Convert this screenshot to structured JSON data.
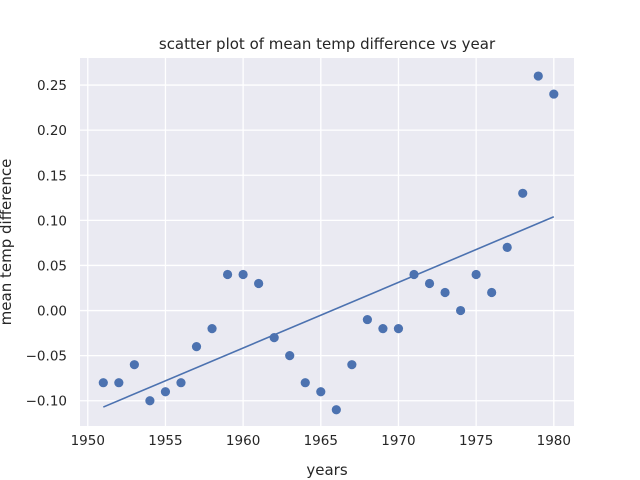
{
  "chart_data": {
    "type": "scatter",
    "title": "scatter plot of mean temp difference vs year",
    "xlabel": "years",
    "ylabel": "mean temp difference",
    "xlim": [
      1949.5,
      1981.3
    ],
    "ylim": [
      -0.128,
      0.28
    ],
    "xticks": [
      1950,
      1955,
      1960,
      1965,
      1970,
      1975,
      1980
    ],
    "xtick_labels": [
      "1950",
      "1955",
      "1960",
      "1965",
      "1970",
      "1975",
      "1980"
    ],
    "yticks": [
      -0.1,
      -0.05,
      0.0,
      0.05,
      0.1,
      0.15,
      0.2,
      0.25
    ],
    "ytick_labels": [
      "−0.10",
      "−0.05",
      "0.00",
      "0.05",
      "0.10",
      "0.15",
      "0.20",
      "0.25"
    ],
    "grid": true,
    "background_color": "#eaeaf2",
    "grid_color": "#ffffff",
    "series": [
      {
        "type": "scatter",
        "color": "#4c72b0",
        "x": [
          1951,
          1952,
          1953,
          1954,
          1955,
          1956,
          1957,
          1958,
          1959,
          1960,
          1961,
          1962,
          1963,
          1964,
          1965,
          1966,
          1967,
          1968,
          1969,
          1970,
          1971,
          1972,
          1973,
          1974,
          1975,
          1976,
          1977,
          1978,
          1979,
          1980
        ],
        "y": [
          -0.08,
          -0.08,
          -0.06,
          -0.1,
          -0.09,
          -0.08,
          -0.04,
          -0.02,
          0.04,
          0.04,
          0.03,
          -0.03,
          -0.05,
          -0.08,
          -0.09,
          -0.11,
          -0.06,
          -0.01,
          -0.02,
          -0.02,
          0.04,
          0.03,
          0.02,
          0.0,
          0.04,
          0.02,
          0.07,
          0.13,
          0.26,
          0.24
        ]
      },
      {
        "type": "line",
        "color": "#4c72b0",
        "x": [
          1951,
          1980
        ],
        "y": [
          -0.107,
          0.104
        ]
      }
    ]
  }
}
